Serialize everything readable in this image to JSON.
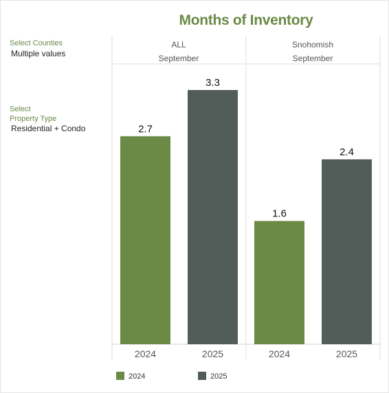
{
  "title": "Months of Inventory",
  "filters": {
    "counties_label": "Select Counties",
    "counties_value": "Multiple values",
    "property_label_line1": "Select",
    "property_label_line2": "Property Type",
    "property_value": "Residential + Condo"
  },
  "colors": {
    "accent": "#6a8a46",
    "series_2024": "#6a8a46",
    "series_2025": "#525c58",
    "filter_label": "#6a8a46"
  },
  "chart_data": {
    "type": "bar",
    "title": "Months of Inventory",
    "ylim": [
      0,
      3.3
    ],
    "panels": [
      {
        "region": "ALL",
        "month": "September",
        "categories": [
          "2024",
          "2025"
        ],
        "values": [
          2.7,
          3.3
        ]
      },
      {
        "region": "Snohomish",
        "month": "September",
        "categories": [
          "2024",
          "2025"
        ],
        "values": [
          1.6,
          2.4
        ]
      }
    ],
    "legend": [
      {
        "name": "2024"
      },
      {
        "name": "2025"
      }
    ],
    "legend_position": "bottom"
  }
}
